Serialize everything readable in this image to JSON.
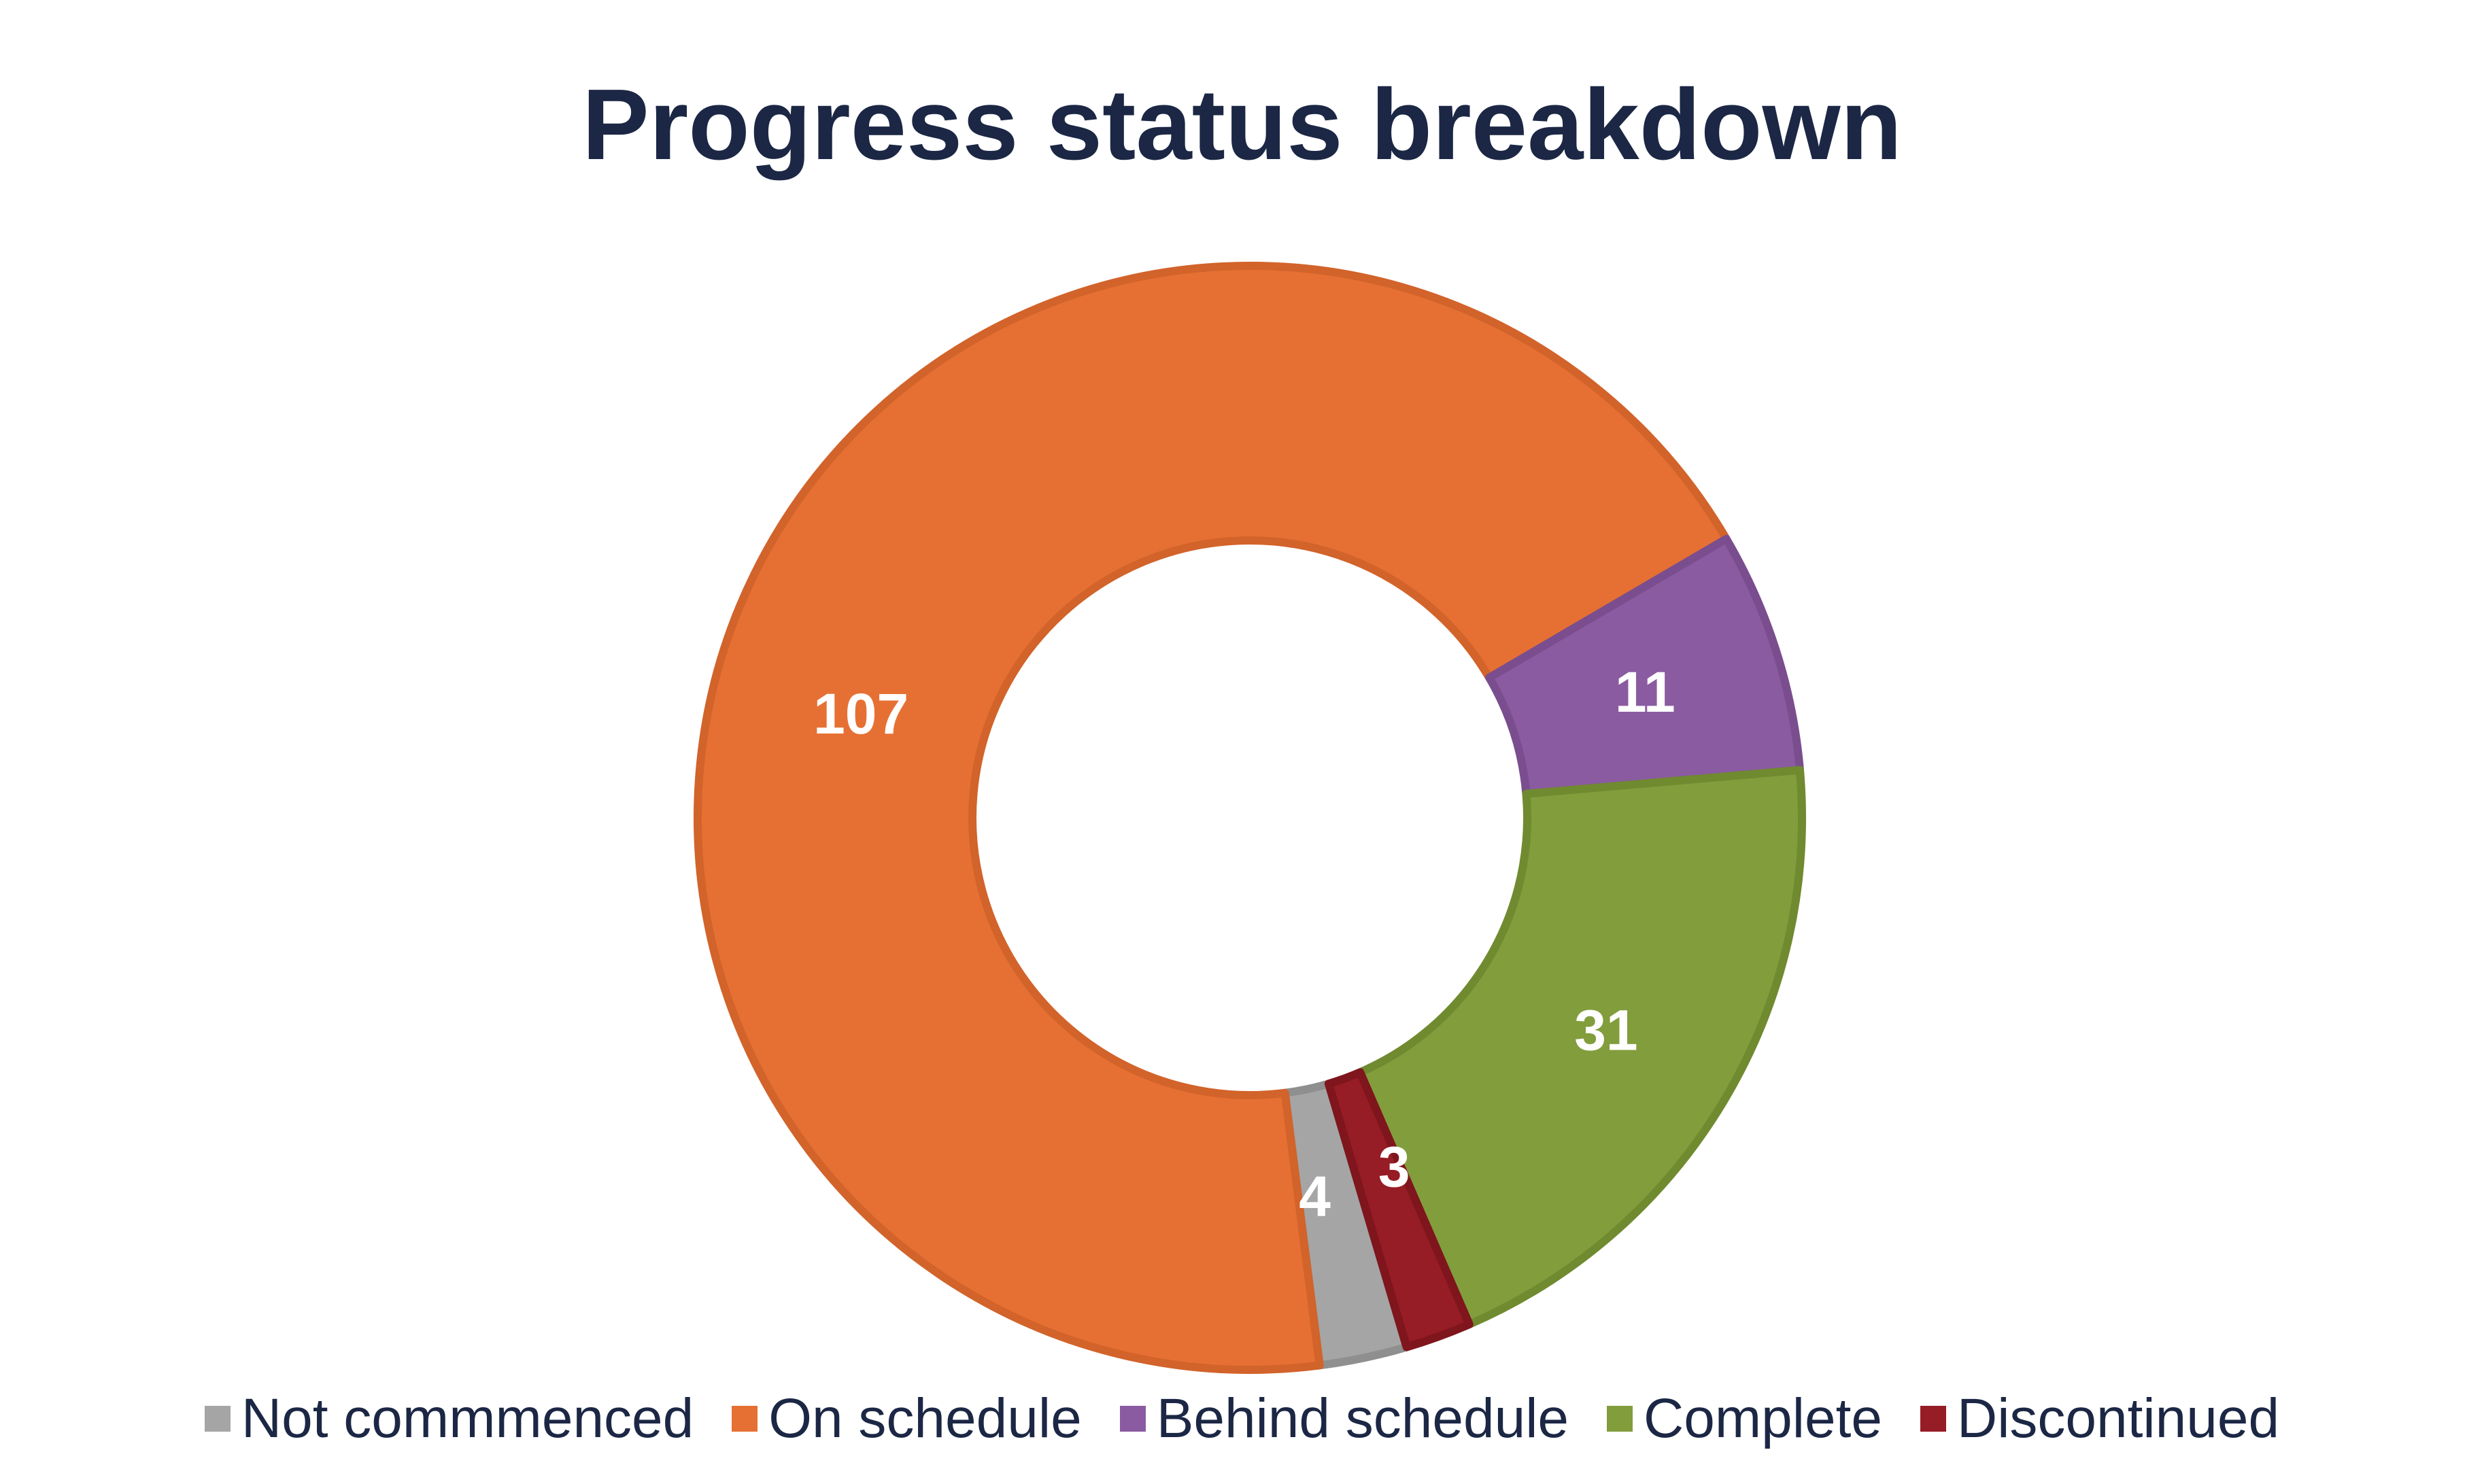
{
  "chart_data": {
    "type": "pie",
    "title": "Progress status breakdown",
    "donut": true,
    "legend_position": "bottom",
    "slices": [
      {
        "label": "Not commmenced",
        "value": 4,
        "color": "#a5a5a5",
        "stroke": "#8f8f8f"
      },
      {
        "label": "On schedule",
        "value": 107,
        "color": "#e67033",
        "stroke": "#d2632a"
      },
      {
        "label": "Behind schedule",
        "value": 11,
        "color": "#8b5ba1",
        "stroke": "#7a4d8f"
      },
      {
        "label": "Complete",
        "value": 31,
        "color": "#829d3c",
        "stroke": "#708a30"
      },
      {
        "label": "Discontinued",
        "value": 3,
        "color": "#961c25",
        "stroke": "#7f151d"
      }
    ]
  }
}
